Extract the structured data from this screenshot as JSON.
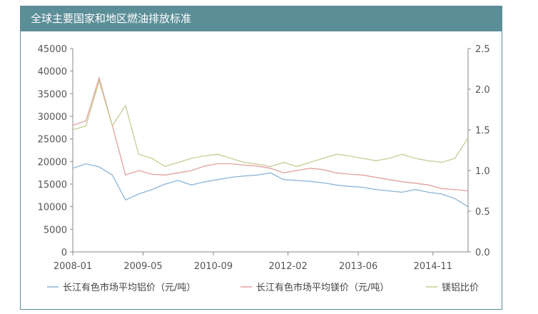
{
  "title": "全球主要国家和地区燃油排放标准",
  "chart_data": {
    "type": "line",
    "x": [
      "2008-01",
      "2008-04",
      "2008-07",
      "2008-10",
      "2009-01",
      "2009-04",
      "2009-07",
      "2009-10",
      "2010-01",
      "2010-04",
      "2010-07",
      "2010-10",
      "2011-01",
      "2011-04",
      "2011-07",
      "2011-10",
      "2012-01",
      "2012-04",
      "2012-07",
      "2012-10",
      "2013-01",
      "2013-04",
      "2013-07",
      "2013-10",
      "2014-01",
      "2014-04",
      "2014-07",
      "2014-10",
      "2015-01",
      "2015-04",
      "2015-07"
    ],
    "x_ticks": [
      "2008-01",
      "2009-05",
      "2010-09",
      "2012-02",
      "2013-06",
      "2014-11"
    ],
    "series": [
      {
        "name": "长江有色市场平均铝价（元/吨）",
        "axis": "left",
        "color": "#8db4d6",
        "values": [
          18500,
          19500,
          18800,
          17000,
          11500,
          12800,
          13800,
          15000,
          15800,
          14800,
          15500,
          16000,
          16500,
          16800,
          17000,
          17500,
          16000,
          15800,
          15600,
          15300,
          14800,
          14500,
          14300,
          13800,
          13500,
          13200,
          13800,
          13200,
          12800,
          11800,
          10000
        ]
      },
      {
        "name": "长江有色市场平均镁价（元/吨）",
        "axis": "left",
        "color": "#e2a0a0",
        "values": [
          28000,
          29000,
          38500,
          28000,
          17000,
          18000,
          17200,
          17000,
          17500,
          18000,
          19000,
          19500,
          19500,
          19200,
          19000,
          18500,
          17500,
          18000,
          18500,
          18200,
          17500,
          17200,
          17000,
          16500,
          16000,
          15500,
          15200,
          14800,
          14000,
          13800,
          13500
        ]
      },
      {
        "name": "镁铝比价",
        "axis": "right",
        "color": "#c8cc94",
        "values": [
          1.5,
          1.55,
          2.1,
          1.55,
          1.8,
          1.2,
          1.15,
          1.05,
          1.1,
          1.15,
          1.18,
          1.2,
          1.15,
          1.1,
          1.08,
          1.05,
          1.1,
          1.05,
          1.1,
          1.15,
          1.2,
          1.18,
          1.15,
          1.12,
          1.15,
          1.2,
          1.15,
          1.12,
          1.1,
          1.15,
          1.4
        ]
      }
    ],
    "ylim_left": [
      0,
      45000
    ],
    "yticks_left": [
      "0",
      "5000",
      "10000",
      "15000",
      "20000",
      "25000",
      "30000",
      "35000",
      "40000",
      "45000"
    ],
    "ylim_right": [
      0,
      2.5
    ],
    "yticks_right": [
      "0.0",
      "0.5",
      "1.0",
      "1.5",
      "2.0",
      "2.5"
    ],
    "legend_position": "bottom"
  }
}
